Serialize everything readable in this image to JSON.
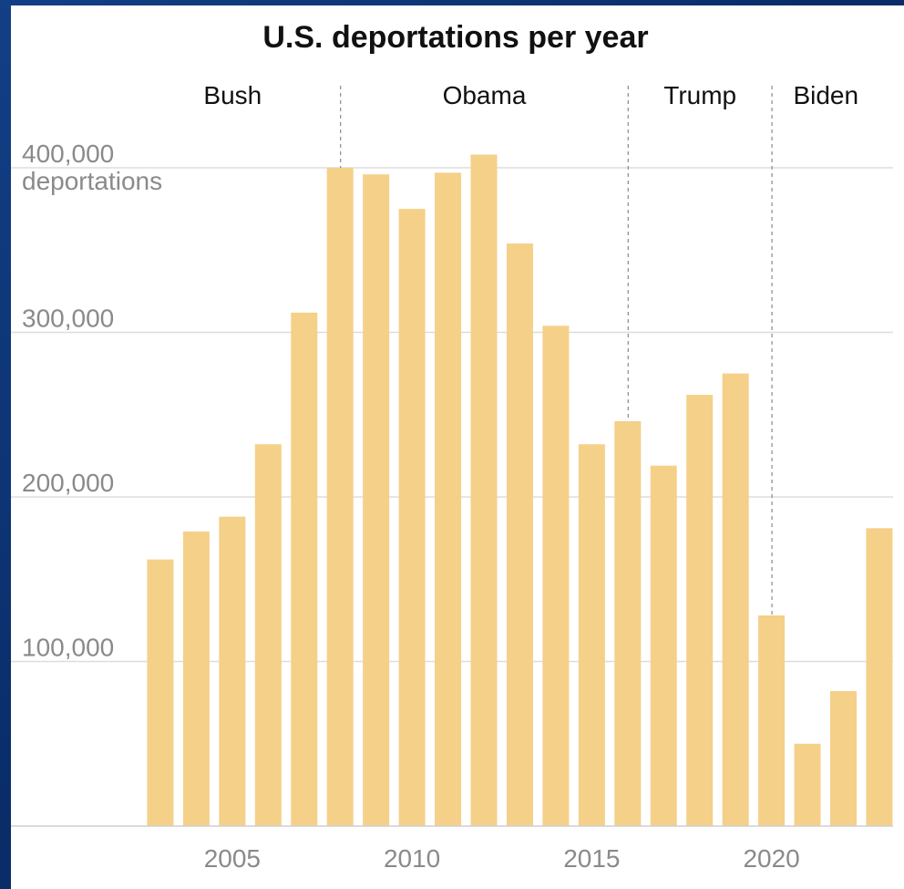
{
  "chart_data": {
    "type": "bar",
    "title": "U.S. deportations per year",
    "xlabel": "",
    "ylabel": "",
    "y_unit_label": "deportations",
    "categories": [
      2003,
      2004,
      2005,
      2006,
      2007,
      2008,
      2009,
      2010,
      2011,
      2012,
      2013,
      2014,
      2015,
      2016,
      2017,
      2018,
      2019,
      2020,
      2021,
      2022,
      2023
    ],
    "values": [
      162000,
      179000,
      188000,
      232000,
      312000,
      400000,
      396000,
      375000,
      397000,
      408000,
      354000,
      304000,
      232000,
      246000,
      219000,
      262000,
      275000,
      128000,
      50000,
      82000,
      181000
    ],
    "ylim": [
      0,
      410000
    ],
    "yticks": [
      100000,
      200000,
      300000,
      400000
    ],
    "ytick_labels": [
      "100,000",
      "200,000",
      "300,000",
      "400,000"
    ],
    "xticks": [
      2005,
      2010,
      2015,
      2020
    ],
    "xtick_labels": [
      "2005",
      "2010",
      "2015",
      "2020"
    ],
    "grid": "horizontal",
    "bar_color": "#f5d088",
    "eras": [
      {
        "label": "Bush",
        "start": 2002.5,
        "end": 2008.5
      },
      {
        "label": "Obama",
        "start": 2008.5,
        "end": 2016.5
      },
      {
        "label": "Trump",
        "start": 2016.5,
        "end": 2020.5
      },
      {
        "label": "Biden",
        "start": 2020.5,
        "end": 2023.5
      }
    ]
  }
}
